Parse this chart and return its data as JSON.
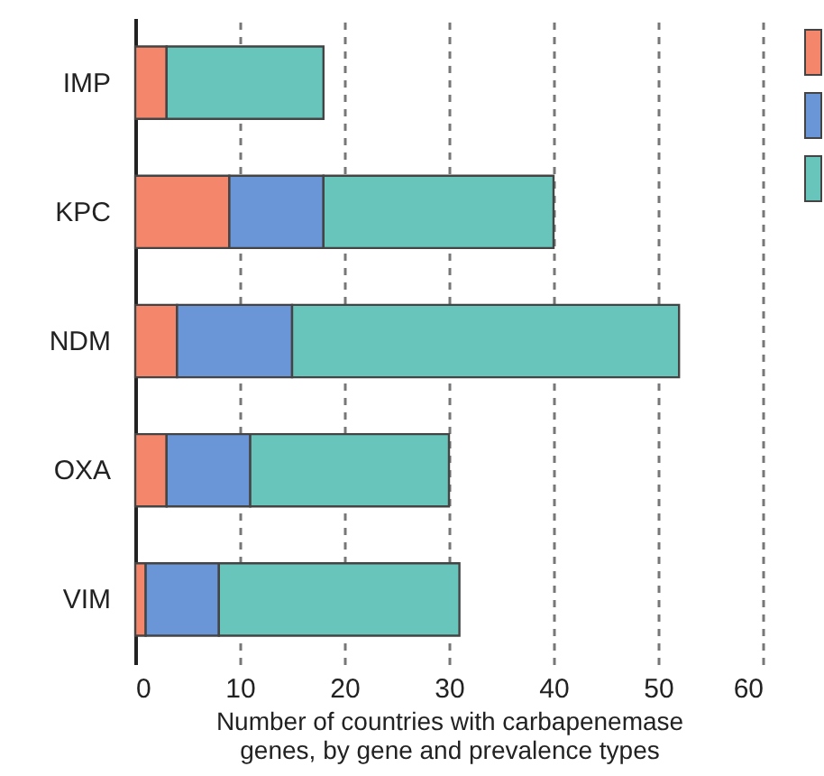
{
  "chart_data": {
    "type": "bar",
    "orientation": "horizontal",
    "stacked": true,
    "categories": [
      "IMP",
      "KPC",
      "NDM",
      "OXA",
      "VIM"
    ],
    "series": [
      {
        "color": "#f4876b",
        "values": [
          3,
          9,
          4,
          3,
          1
        ]
      },
      {
        "color": "#6a96d8",
        "values": [
          null,
          9,
          11,
          8,
          7
        ]
      },
      {
        "color": "#68c5bc",
        "values": [
          15,
          22,
          37,
          19,
          23
        ]
      }
    ],
    "xlabel": "Number of countries with carbapenemase genes, by gene and prevalence types",
    "xlim": [
      0,
      60
    ],
    "xticks": [
      0,
      10,
      20,
      30,
      40,
      50,
      60
    ],
    "grid": "x"
  }
}
